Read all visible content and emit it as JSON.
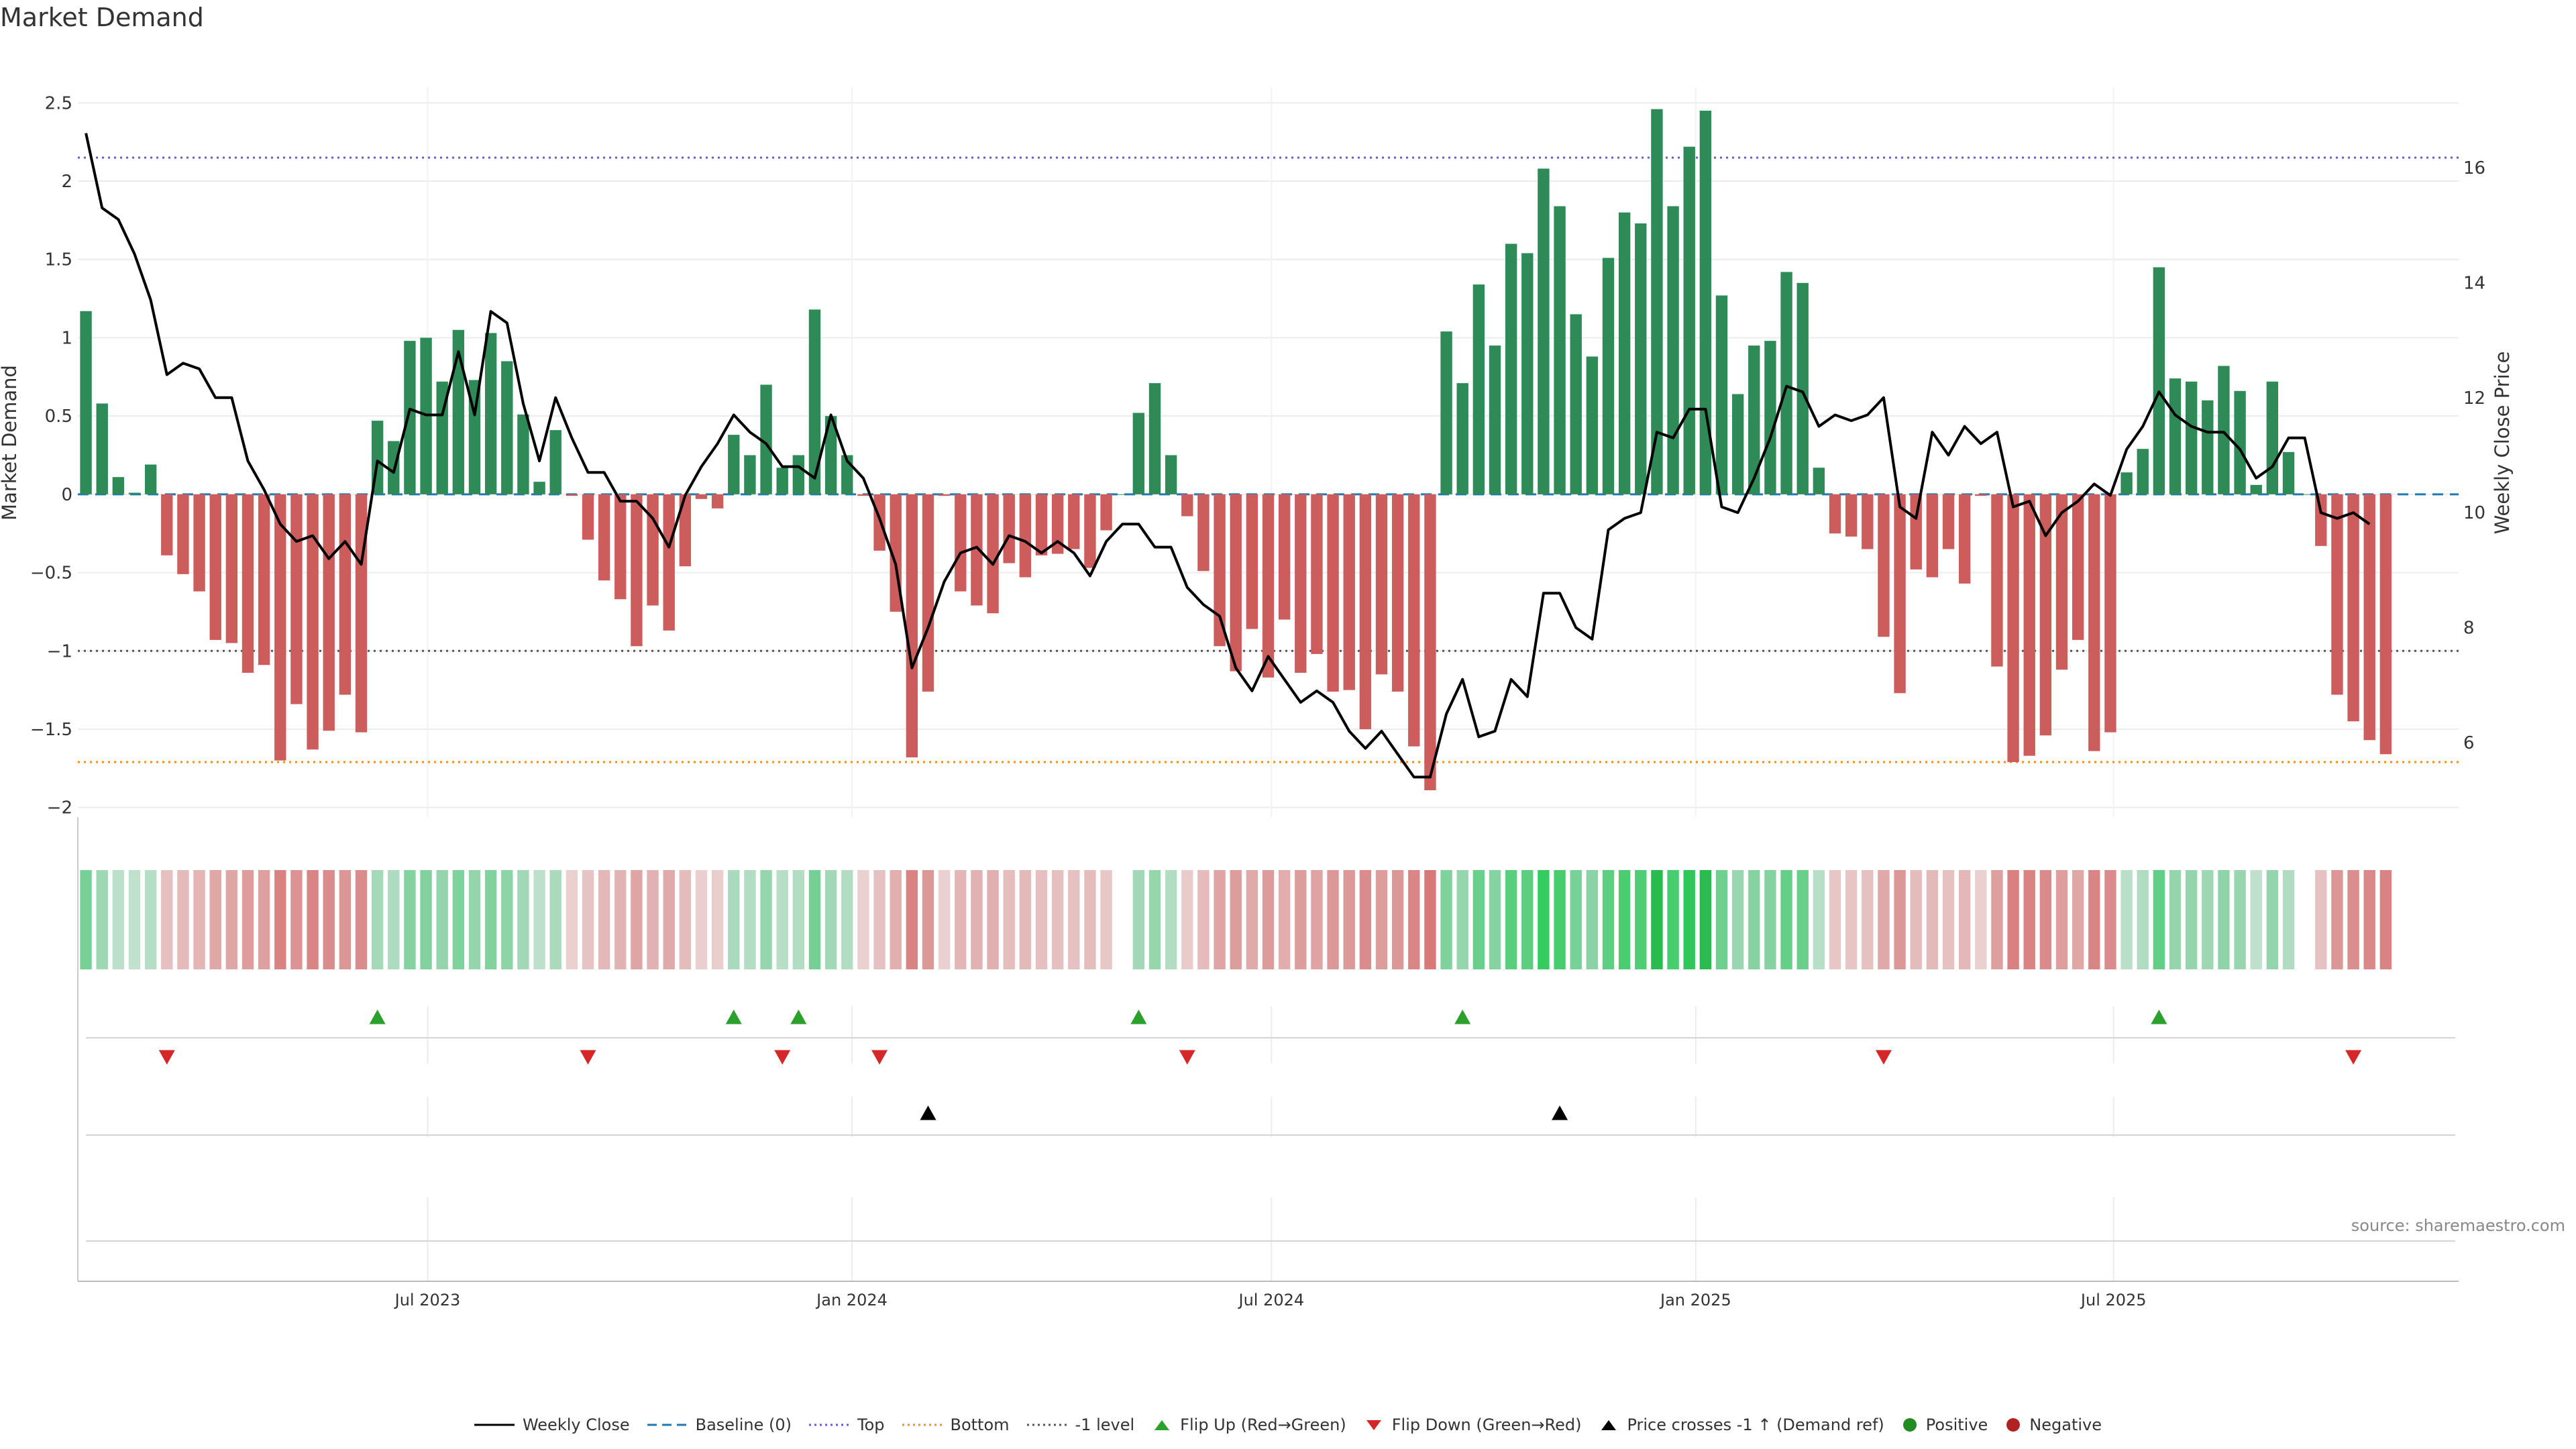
{
  "chart_data": {
    "type": "bar",
    "title": "Market Demand",
    "ylabel": "Market Demand",
    "y2label": "Weekly Close Price",
    "ylim": [
      -2.1,
      2.6
    ],
    "y2lim": [
      4.6,
      17.4
    ],
    "yticks": [
      "2.5",
      "2",
      "1.5",
      "1",
      "0.5",
      "0",
      "−0.5",
      "−1",
      "−1.5",
      "−2"
    ],
    "ytick_values": [
      2.5,
      2,
      1.5,
      1,
      0.5,
      0,
      -0.5,
      -1,
      -1.5,
      -2
    ],
    "y2ticks": [
      "16",
      "14",
      "12",
      "10",
      "8",
      "6"
    ],
    "y2tick_values": [
      16,
      14,
      12,
      10,
      8,
      6
    ],
    "x_start": "2023-01-06",
    "week_count": 147,
    "xticks": [
      {
        "label": "Jul 2023",
        "week": 21.6
      },
      {
        "label": "Jan 2024",
        "week": 47.8
      },
      {
        "label": "Jul 2024",
        "week": 73.7
      },
      {
        "label": "Jan 2025",
        "week": 99.9
      },
      {
        "label": "Jul 2025",
        "week": 125.7
      }
    ],
    "reference_lines": {
      "top": 2.15,
      "bottom": -1.71,
      "minus_one": -1.0,
      "baseline": 0
    },
    "demand": [
      1.17,
      0.58,
      0.11,
      0.01,
      0.19,
      -0.39,
      -0.51,
      -0.62,
      -0.93,
      -0.95,
      -1.14,
      -1.09,
      -1.7,
      -1.34,
      -1.63,
      -1.51,
      -1.28,
      -1.52,
      0.47,
      0.34,
      0.98,
      1,
      0.72,
      1.05,
      0.73,
      1.03,
      0.85,
      0.51,
      0.08,
      0.41,
      -0.01,
      -0.29,
      -0.55,
      -0.67,
      -0.97,
      -0.71,
      -0.87,
      -0.46,
      -0.03,
      -0.09,
      0.38,
      0.25,
      0.7,
      0.17,
      0.25,
      1.18,
      0.5,
      0.25,
      -0.01,
      -0.36,
      -0.75,
      -1.68,
      -1.26,
      -0.01,
      -0.62,
      -0.71,
      -0.76,
      -0.44,
      -0.53,
      -0.39,
      -0.38,
      -0.35,
      -0.47,
      -0.23,
      0,
      0.52,
      0.71,
      0.25,
      -0.14,
      -0.49,
      -0.97,
      -1.13,
      -0.86,
      -1.17,
      -0.8,
      -1.14,
      -1.02,
      -1.26,
      -1.25,
      -1.5,
      -1.15,
      -1.26,
      -1.61,
      -1.89,
      1.04,
      0.71,
      1.34,
      0.95,
      1.6,
      1.54,
      2.08,
      1.84,
      1.15,
      0.88,
      1.51,
      1.8,
      1.73,
      2.46,
      1.84,
      2.22,
      2.45,
      1.27,
      0.64,
      0.95,
      0.98,
      1.42,
      1.35,
      0.17,
      -0.25,
      -0.27,
      -0.35,
      -0.91,
      -1.27,
      -0.48,
      -0.53,
      -0.35,
      -0.57,
      -0.01,
      -1.1,
      -1.71,
      -1.67,
      -1.54,
      -1.12,
      -0.93,
      -1.64,
      -1.52,
      0.14,
      0.29,
      1.45,
      0.74,
      0.72,
      0.6,
      0.82,
      0.66,
      0.06,
      0.72,
      0.27,
      0,
      -0.33,
      -1.28,
      -1.45,
      -1.57,
      -1.66
    ],
    "close": [
      16.6,
      15.3,
      15.1,
      14.5,
      13.7,
      12.4,
      12.6,
      12.5,
      12,
      12,
      10.9,
      10.4,
      9.8,
      9.5,
      9.6,
      9.2,
      9.5,
      9.1,
      10.9,
      10.7,
      11.8,
      11.7,
      11.7,
      12.8,
      11.7,
      13.5,
      13.3,
      11.9,
      10.9,
      12,
      11.3,
      10.7,
      10.7,
      10.2,
      10.2,
      9.9,
      9.4,
      10.3,
      10.8,
      11.2,
      11.7,
      11.4,
      11.2,
      10.8,
      10.8,
      10.6,
      11.7,
      10.9,
      10.6,
      9.9,
      9.1,
      7.3,
      8,
      8.8,
      9.3,
      9.4,
      9.1,
      9.6,
      9.5,
      9.3,
      9.5,
      9.3,
      8.9,
      9.5,
      9.8,
      9.8,
      9.4,
      9.4,
      8.7,
      8.4,
      8.2,
      7.3,
      6.9,
      7.5,
      7.1,
      6.7,
      6.9,
      6.7,
      6.2,
      5.9,
      6.2,
      5.8,
      5.4,
      5.4,
      6.5,
      7.1,
      6.1,
      6.2,
      7.1,
      6.8,
      8.6,
      8.6,
      8,
      7.8,
      9.7,
      9.9,
      10,
      11.4,
      11.3,
      11.8,
      11.8,
      10.1,
      10,
      10.6,
      11.3,
      12.2,
      12.1,
      11.5,
      11.7,
      11.6,
      11.7,
      12,
      10.1,
      9.9,
      11.4,
      11,
      11.5,
      11.2,
      11.4,
      10.1,
      10.2,
      9.6,
      10,
      10.2,
      10.5,
      10.3,
      11.1,
      11.5,
      12.1,
      11.7,
      11.5,
      11.4,
      11.4,
      11.1,
      10.6,
      10.8,
      11.3,
      11.3,
      10,
      9.9,
      10,
      9.8
    ]
  },
  "flags": {
    "flip_up_weeks": [
      18,
      40,
      44,
      65,
      85,
      128
    ],
    "flip_down_weeks": [
      5,
      31,
      43,
      49,
      68,
      111,
      140
    ],
    "price_cross_weeks": [
      52,
      91
    ]
  },
  "title": "Market Demand",
  "source": "source: sharemaestro.com",
  "legend": [
    {
      "key": "close",
      "label": "Weekly Close"
    },
    {
      "key": "baseline",
      "label": "Baseline (0)"
    },
    {
      "key": "top",
      "label": "Top"
    },
    {
      "key": "bottom",
      "label": "Bottom"
    },
    {
      "key": "minus1",
      "label": "-1 level"
    },
    {
      "key": "flipup",
      "label": "Flip Up (Red→Green)"
    },
    {
      "key": "flipdown",
      "label": "Flip Down (Green→Red)"
    },
    {
      "key": "cross",
      "label": "Price crosses -1 ↑ (Demand ref)"
    },
    {
      "key": "pos",
      "label": "Positive"
    },
    {
      "key": "neg",
      "label": "Negative"
    }
  ],
  "colors": {
    "positive": "#2e8b57",
    "negative": "#cd5c5c",
    "close": "#000000",
    "baseline": "#1f77b4",
    "top": "#6a5acd",
    "bottom": "#ff8c00",
    "minus_one": "#555555",
    "flip_up": "#2ca02c",
    "flip_down": "#d62728",
    "cross": "#000000",
    "pos_dot": "#228b22",
    "neg_dot": "#b22222"
  }
}
